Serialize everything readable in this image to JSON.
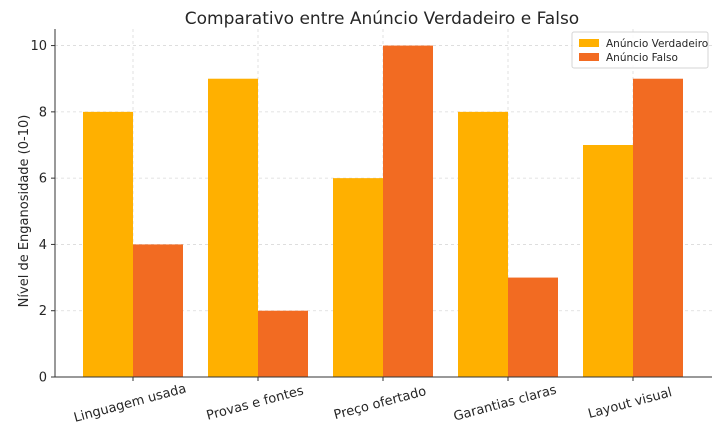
{
  "chart_data": {
    "type": "bar",
    "title": "Comparativo entre Anúncio Verdadeiro e Falso",
    "xlabel": "",
    "ylabel": "Nível de Enganosidade (0-10)",
    "categories": [
      "Linguagem usada",
      "Provas e fontes",
      "Preço ofertado",
      "Garantias claras",
      "Layout visual"
    ],
    "series": [
      {
        "name": "Anúncio Verdadeiro",
        "values": [
          8,
          9,
          6,
          8,
          7
        ],
        "color": "#FFB000"
      },
      {
        "name": "Anúncio Falso",
        "values": [
          4,
          2,
          10,
          3,
          9
        ],
        "color": "#F26B22"
      }
    ],
    "ylim": [
      0,
      10.5
    ],
    "yticks": [
      0,
      2,
      4,
      6,
      8,
      10
    ],
    "grid": true,
    "legend_position": "top-right",
    "xtick_rotation": "angled"
  }
}
